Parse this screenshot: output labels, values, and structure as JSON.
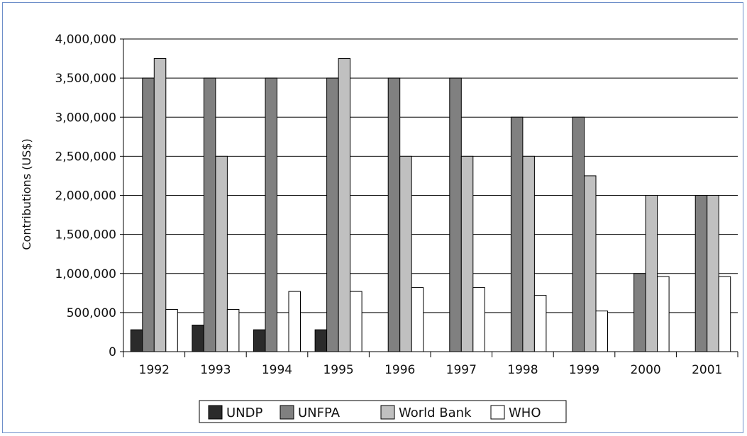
{
  "chart_data": {
    "type": "bar",
    "ylabel": "Contributions (US$)",
    "xlabel": "",
    "ylim": [
      0,
      4000000
    ],
    "y_ticks": [
      0,
      500000,
      1000000,
      1500000,
      2000000,
      2500000,
      3000000,
      3500000,
      4000000
    ],
    "y_tick_labels": [
      "0",
      "500,000",
      "1,000,000",
      "1,500,000",
      "2,000,000",
      "2,500,000",
      "3,000,000",
      "3,500,000",
      "4,000,000"
    ],
    "grid": true,
    "legend_position": "bottom",
    "categories": [
      "1992",
      "1993",
      "1994",
      "1995",
      "1996",
      "1997",
      "1998",
      "1999",
      "2000",
      "2001"
    ],
    "series": [
      {
        "name": "UNDP",
        "color": "#2b2b2b",
        "values": [
          280000,
          340000,
          280000,
          280000,
          0,
          0,
          0,
          0,
          0,
          0
        ]
      },
      {
        "name": "UNFPA",
        "color": "#808080",
        "values": [
          3500000,
          3500000,
          3500000,
          3500000,
          3500000,
          3500000,
          3000000,
          3000000,
          1000000,
          2000000
        ]
      },
      {
        "name": "World Bank",
        "color": "#c0c0c0",
        "values": [
          3750000,
          2500000,
          0,
          3750000,
          2500000,
          2500000,
          2500000,
          2250000,
          2000000,
          2000000
        ]
      },
      {
        "name": "WHO",
        "color": "#ffffff",
        "values": [
          540000,
          540000,
          770000,
          770000,
          820000,
          820000,
          720000,
          520000,
          960000,
          960000
        ]
      }
    ]
  }
}
